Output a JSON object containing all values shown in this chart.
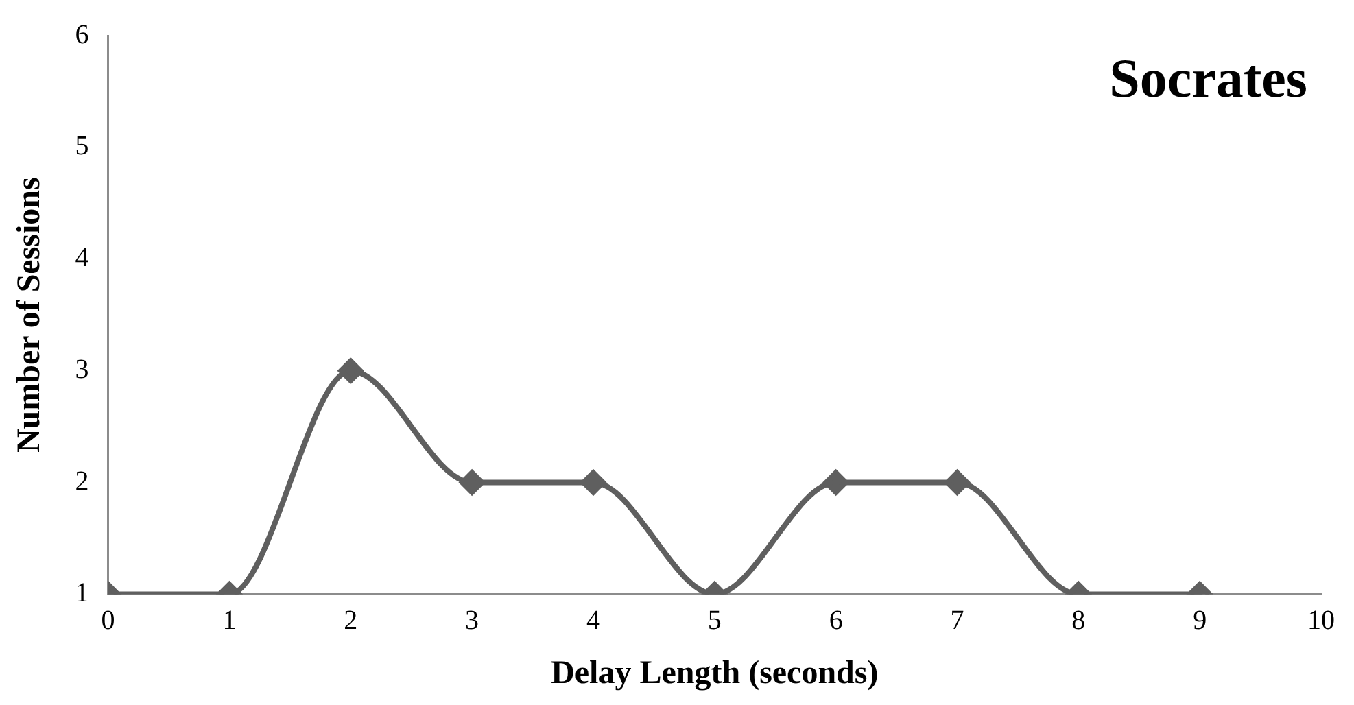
{
  "chart_data": {
    "type": "line",
    "title": "Socrates",
    "xlabel": "Delay Length (seconds)",
    "ylabel": "Number of Sessions",
    "x": [
      0,
      1,
      2,
      3,
      4,
      5,
      6,
      7,
      8,
      9
    ],
    "series": [
      {
        "color": "#5f5f5f",
        "values": [
          1,
          1,
          3,
          2,
          2,
          1,
          2,
          2,
          1,
          1
        ]
      }
    ],
    "xlim": [
      0,
      10
    ],
    "xticks": [
      0,
      1,
      2,
      3,
      4,
      5,
      6,
      7,
      8,
      9,
      10
    ],
    "ylim": [
      1,
      6
    ],
    "yticks": [
      1,
      2,
      3,
      4,
      5,
      6
    ],
    "grid": false,
    "legend": false,
    "marker": "diamond",
    "line_style": "solid"
  }
}
